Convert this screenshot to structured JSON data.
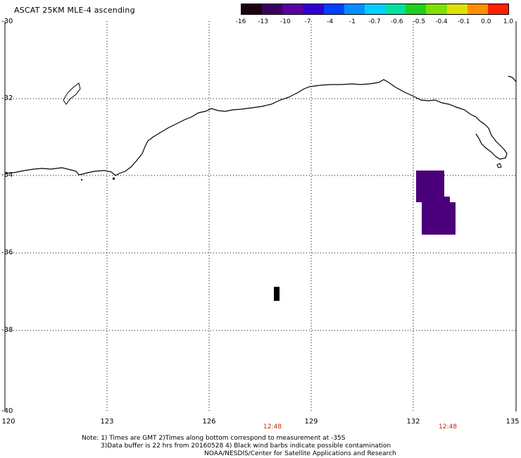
{
  "title": "ASCAT 25KM MLE-4 ascending",
  "colorbar": {
    "labels": [
      "-16",
      "-13",
      "-10",
      "-7",
      "-4",
      "-1",
      "-0.7",
      "-0.6",
      "-0.5",
      "-0.4",
      "-0.1",
      "0.0",
      "1.0"
    ],
    "colors": [
      "#1a0010",
      "#3a0060",
      "#5a00a0",
      "#3000d0",
      "#0040ff",
      "#0090ff",
      "#00d0ff",
      "#00e0a0",
      "#20d020",
      "#80e000",
      "#e0e000",
      "#ff9000",
      "#ff2000"
    ]
  },
  "map": {
    "lat_labels": [
      "-30",
      "-32",
      "-34",
      "-36",
      "-38",
      "-40"
    ],
    "lon_labels": [
      "120",
      "123",
      "126",
      "129",
      "132",
      "135"
    ],
    "time_labels": [
      "12:48",
      "12:48"
    ],
    "data_color": "#4a007a",
    "outlier_color": "#000000"
  },
  "notes": {
    "line1": "Note: 1) Times are GMT 2)Times along bottom correspond to measurement at -35S",
    "line2": "3)Data buffer is 22 hrs from 20160528 4) Black wind barbs indicate possible contamination",
    "line3": "NOAA/NESDIS/Center for Satellite Applications and Research"
  }
}
